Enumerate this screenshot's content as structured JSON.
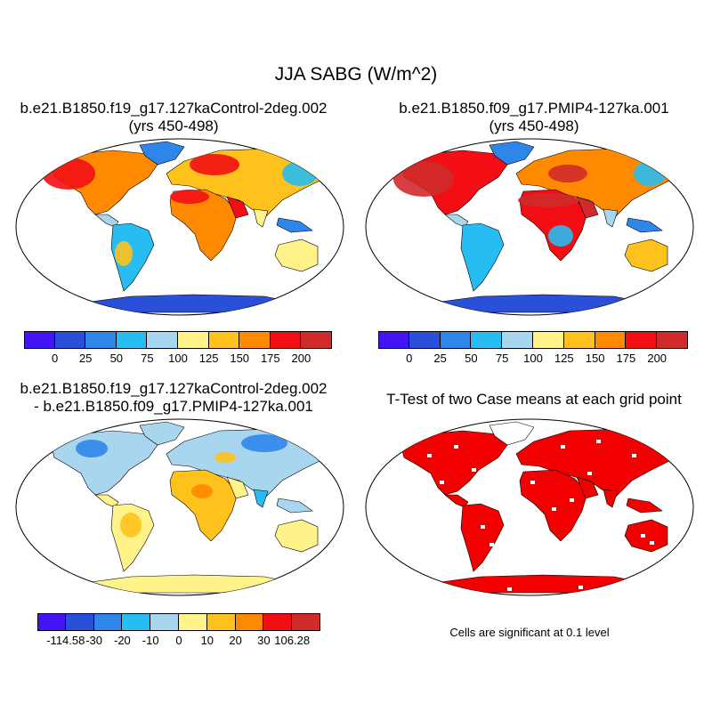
{
  "main_title": "JJA SABG (W/m^2)",
  "panels": [
    {
      "title_line1": "b.e21.B1850.f19_g17.127kaControl-2deg.002",
      "title_line2": "(yrs 450-498)"
    },
    {
      "title_line1": "b.e21.B1850.f09_g17.PMIP4-127ka.001",
      "title_line2": "(yrs 450-498)"
    },
    {
      "title_line1": "b.e21.B1850.f19_g17.127kaControl-2deg.002",
      "title_line2": "- b.e21.B1850.f09_g17.PMIP4-127ka.001"
    },
    {
      "title_line1": "T-Test of two Case means at each grid point",
      "title_line2": ""
    }
  ],
  "colorbars": {
    "abs": {
      "colors": [
        "#4414f5",
        "#2a4fd8",
        "#2f86ea",
        "#28bdf2",
        "#a8d6ee",
        "#fff38a",
        "#ffc21c",
        "#ff8a00",
        "#f20e14",
        "#d02a2a"
      ],
      "labels": [
        "0",
        "25",
        "50",
        "75",
        "100",
        "125",
        "150",
        "175",
        "200"
      ]
    },
    "diff": {
      "colors": [
        "#4414f5",
        "#2a4fd8",
        "#2f86ea",
        "#28bdf2",
        "#a8d6ee",
        "#fff38a",
        "#ffc21c",
        "#ff8a00",
        "#f20e14",
        "#d02a2a"
      ],
      "labels": [
        "-114.58",
        "-30",
        "-20",
        "-10",
        "0",
        "10",
        "20",
        "30",
        "106.28"
      ]
    }
  },
  "significance_note": "Cells are significant at 0.1 level",
  "significance_color": "#f20000"
}
